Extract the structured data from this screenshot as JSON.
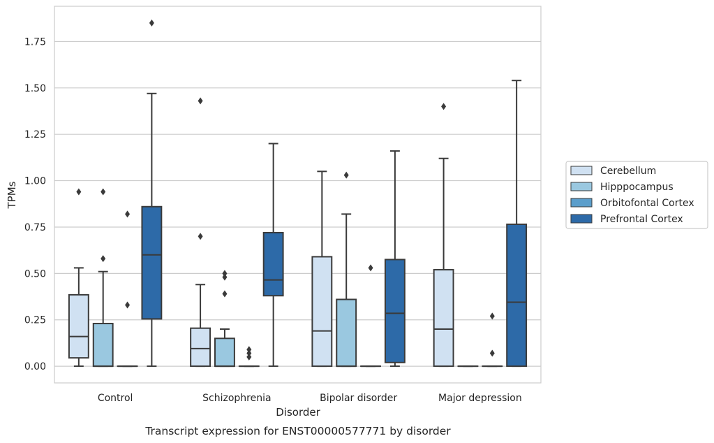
{
  "caption": "Transcript expression for ENST00000577771 by disorder",
  "colors": {
    "grid": "#cccccc",
    "frame": "#cccccc",
    "line": "#3a3a3a"
  },
  "chart_data": {
    "type": "box",
    "xlabel": "Disorder",
    "ylabel": "TPMs",
    "ylim": [
      -0.09,
      1.94
    ],
    "yticks": [
      "0.00",
      "0.25",
      "0.50",
      "0.75",
      "1.00",
      "1.25",
      "1.50",
      "1.75"
    ],
    "grid": "horizontal",
    "legend_position": "right",
    "categories": [
      "Control",
      "Schizophrenia",
      "Bipolar disorder",
      "Major depression"
    ],
    "series": [
      {
        "name": "Cerebellum",
        "color": "#d0e1f2",
        "boxes": [
          {
            "whislo": 0.0,
            "q1": 0.045,
            "med": 0.16,
            "q3": 0.385,
            "whishi": 0.53,
            "fliers": [
              0.94
            ]
          },
          {
            "whislo": 0.0,
            "q1": 0.0,
            "med": 0.095,
            "q3": 0.205,
            "whishi": 0.44,
            "fliers": [
              0.7,
              1.43
            ]
          },
          {
            "whislo": 0.0,
            "q1": 0.0,
            "med": 0.19,
            "q3": 0.59,
            "whishi": 1.05,
            "fliers": []
          },
          {
            "whislo": 0.0,
            "q1": 0.0,
            "med": 0.2,
            "q3": 0.52,
            "whishi": 1.12,
            "fliers": [
              1.4
            ]
          }
        ]
      },
      {
        "name": "Hipppocampus",
        "color": "#9ac8e0",
        "boxes": [
          {
            "whislo": 0.0,
            "q1": 0.0,
            "med": 0.0,
            "q3": 0.23,
            "whishi": 0.51,
            "fliers": [
              0.58,
              0.94
            ]
          },
          {
            "whislo": 0.0,
            "q1": 0.0,
            "med": 0.0,
            "q3": 0.15,
            "whishi": 0.2,
            "fliers": [
              0.39,
              0.48,
              0.5
            ]
          },
          {
            "whislo": 0.0,
            "q1": 0.0,
            "med": 0.0,
            "q3": 0.36,
            "whishi": 0.82,
            "fliers": [
              1.03
            ]
          },
          {
            "whislo": 0.0,
            "q1": 0.0,
            "med": 0.0,
            "q3": 0.0,
            "whishi": 0.0,
            "fliers": []
          }
        ]
      },
      {
        "name": "Orbitofontal Cortex",
        "color": "#5b9ecb",
        "boxes": [
          {
            "whislo": 0.0,
            "q1": 0.0,
            "med": 0.0,
            "q3": 0.0,
            "whishi": 0.0,
            "fliers": [
              0.33,
              0.82
            ]
          },
          {
            "whislo": 0.0,
            "q1": 0.0,
            "med": 0.0,
            "q3": 0.0,
            "whishi": 0.0,
            "fliers": [
              0.05,
              0.07,
              0.09
            ]
          },
          {
            "whislo": 0.0,
            "q1": 0.0,
            "med": 0.0,
            "q3": 0.0,
            "whishi": 0.0,
            "fliers": [
              0.53
            ]
          },
          {
            "whislo": 0.0,
            "q1": 0.0,
            "med": 0.0,
            "q3": 0.0,
            "whishi": 0.0,
            "fliers": [
              0.07,
              0.27
            ]
          }
        ]
      },
      {
        "name": "Prefrontal Cortex",
        "color": "#2d6aa8",
        "boxes": [
          {
            "whislo": 0.0,
            "q1": 0.255,
            "med": 0.6,
            "q3": 0.86,
            "whishi": 1.47,
            "fliers": [
              1.85
            ]
          },
          {
            "whislo": 0.0,
            "q1": 0.38,
            "med": 0.465,
            "q3": 0.72,
            "whishi": 1.2,
            "fliers": []
          },
          {
            "whislo": 0.0,
            "q1": 0.02,
            "med": 0.285,
            "q3": 0.575,
            "whishi": 1.16,
            "fliers": []
          },
          {
            "whislo": 0.0,
            "q1": 0.0,
            "med": 0.345,
            "q3": 0.765,
            "whishi": 1.54,
            "fliers": []
          }
        ]
      }
    ]
  }
}
